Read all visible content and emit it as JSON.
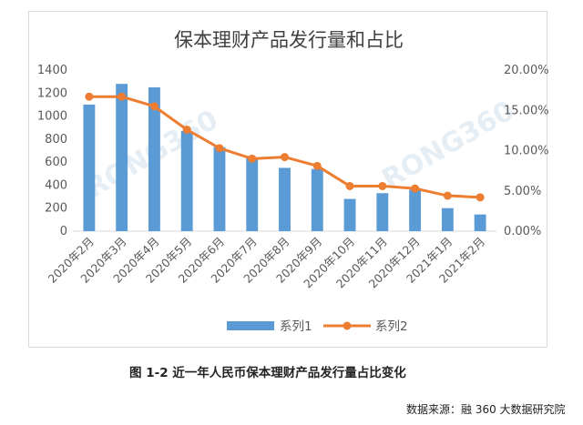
{
  "chart_data": {
    "type": "bar",
    "title": "保本理财产品发行量和占比",
    "categories": [
      "2020年2月",
      "2020年3月",
      "2020年4月",
      "2020年5月",
      "2020年6月",
      "2020年7月",
      "2020年8月",
      "2020年9月",
      "2020年10月",
      "2020年11月",
      "2020年12月",
      "2021年1月",
      "2021年2月"
    ],
    "ylim": [
      0,
      1400
    ],
    "yticks": [
      0,
      200,
      400,
      600,
      800,
      1000,
      1200,
      1400
    ],
    "y2lim": [
      0,
      0.2
    ],
    "y2ticks": [
      "0.00%",
      "5.00%",
      "10.00%",
      "15.00%",
      "20.00%"
    ],
    "series": [
      {
        "name": "系列1",
        "type": "bar",
        "axis": "left",
        "color": "#5b9bd5",
        "values": [
          1100,
          1280,
          1250,
          870,
          730,
          640,
          550,
          540,
          280,
          330,
          360,
          200,
          145
        ]
      },
      {
        "name": "系列2",
        "type": "line",
        "axis": "right",
        "color": "#ed7d31",
        "values": [
          0.167,
          0.167,
          0.155,
          0.126,
          0.103,
          0.09,
          0.092,
          0.081,
          0.056,
          0.056,
          0.053,
          0.044,
          0.042
        ]
      }
    ],
    "legend_position": "bottom",
    "grid": false
  },
  "watermark": [
    "RONG360",
    "RONG360"
  ],
  "caption": "图 1-2  近一年人民币保本理财产品发行量占比变化",
  "source": "数据来源：融 360 大数据研究院"
}
